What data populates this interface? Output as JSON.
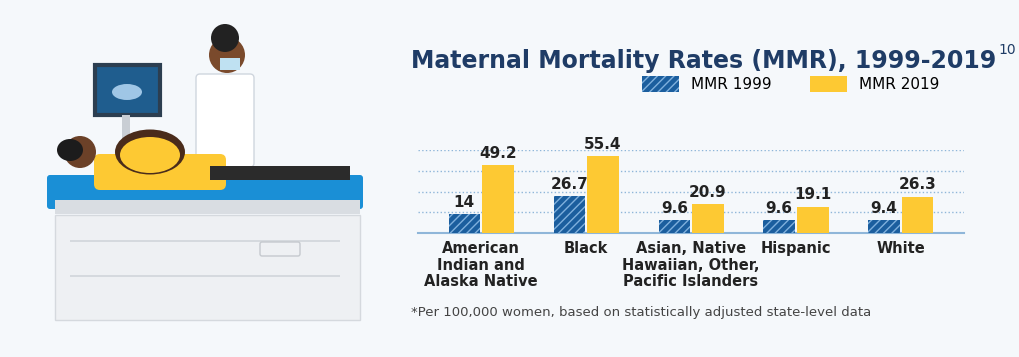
{
  "chart_data": {
    "type": "bar",
    "title": "Maternal Mortality Rates (MMR), 1999-2019",
    "title_note": "10",
    "note": "*Per 100,000 women, based on statistically adjusted state-level data",
    "categories": [
      "American\nIndian and\nAlaska Native",
      "Black",
      "Asian, Native\nHawaiian, Other,\nPacific Islanders",
      "Hispanic",
      "White"
    ],
    "series": [
      {
        "name": "MMR 1999",
        "color": "#1b5e9e",
        "values": [
          14,
          26.7,
          9.6,
          9.6,
          9.4
        ]
      },
      {
        "name": "MMR 2019",
        "color": "#fdc933",
        "values": [
          49.2,
          55.4,
          20.9,
          19.1,
          26.3
        ]
      }
    ],
    "ylim": [
      0,
      60
    ],
    "yticks": [
      0,
      15,
      30,
      45,
      60
    ],
    "grid": true,
    "legend": "upper right",
    "data_labels": true,
    "tick_labels": "x"
  }
}
